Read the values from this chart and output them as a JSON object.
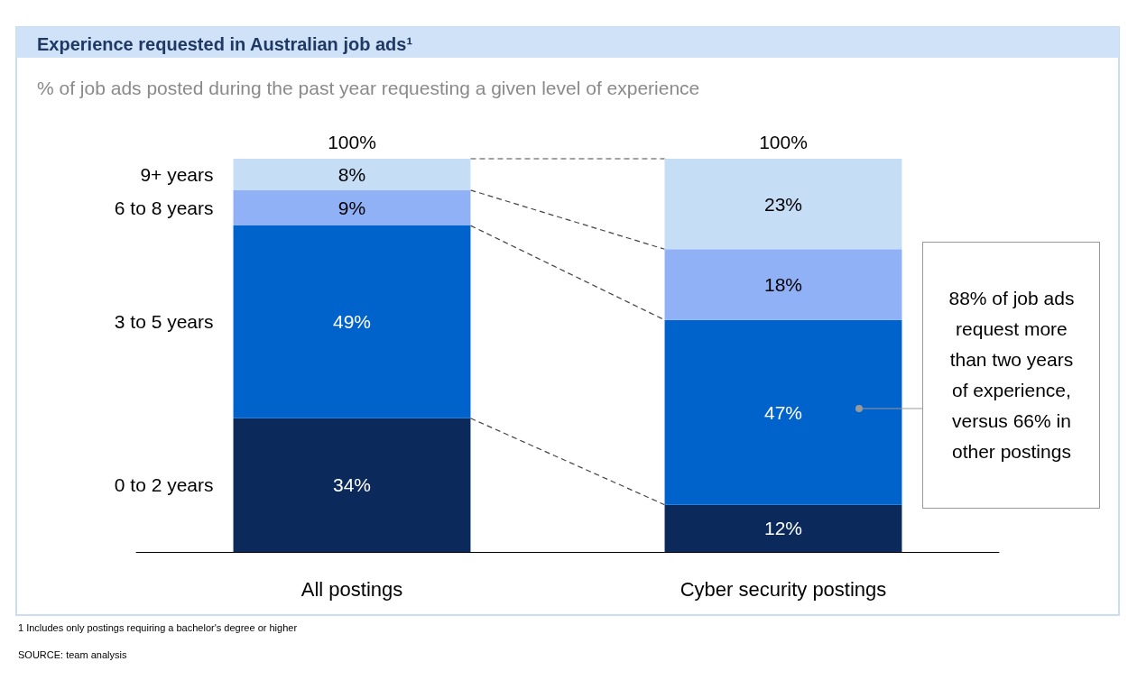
{
  "chart_data": {
    "type": "bar",
    "stacked": true,
    "title": "Experience requested in Australian job ads¹",
    "subtitle": "% of job ads posted during the past year requesting a given level of experience",
    "categories": [
      "All postings",
      "Cyber security postings"
    ],
    "series": [
      {
        "name": "0 to 2 years",
        "color": "#0b2a5b",
        "values": [
          34,
          12
        ],
        "value_labels": [
          "34%",
          "12%"
        ]
      },
      {
        "name": "3 to 5 years",
        "color": "#0063cc",
        "values": [
          49,
          47
        ],
        "value_labels": [
          "49%",
          "47%"
        ]
      },
      {
        "name": "6 to 8 years",
        "color": "#91b1f7",
        "values": [
          9,
          18
        ],
        "value_labels": [
          "9%",
          "18%"
        ]
      },
      {
        "name": "9+ years",
        "color": "#c6ddf6",
        "values": [
          8,
          23
        ],
        "value_labels": [
          "8%",
          "23%"
        ]
      }
    ],
    "totals": [
      "100%",
      "100%"
    ],
    "annotations": [
      "88% of job ads request more than two years of experience, versus 66% in other postings",
      "1 Includes only postings requiring a bachelor's degree or higher",
      "SOURCE: team analysis"
    ]
  }
}
